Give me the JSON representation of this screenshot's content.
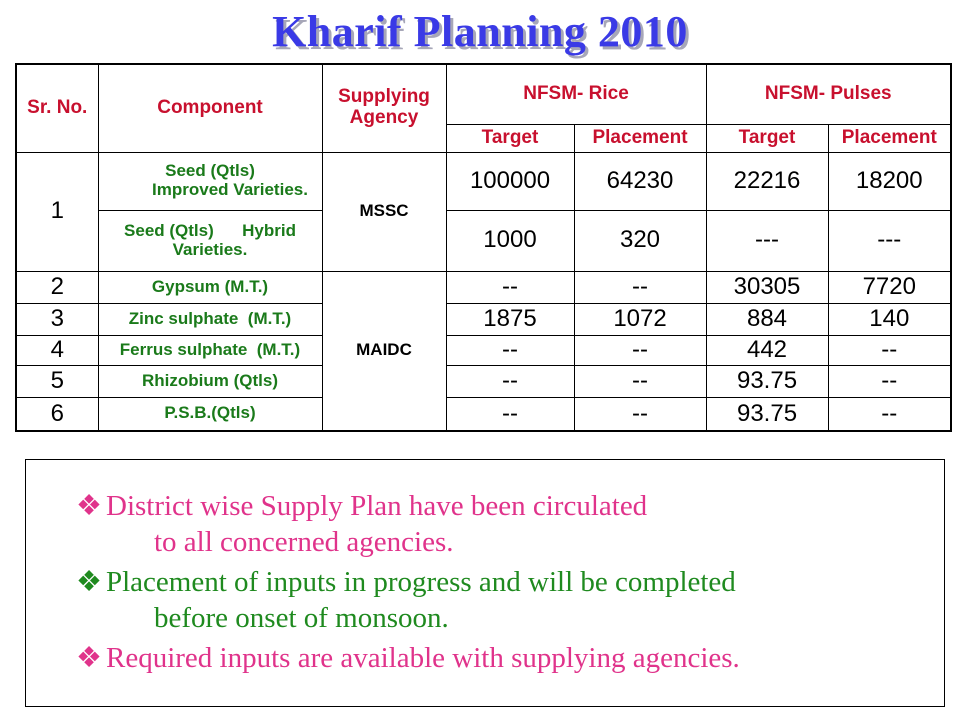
{
  "title": "Kharif Planning 2010",
  "table": {
    "headers": {
      "sr_no": "Sr. No.",
      "component": "Component",
      "supplying_agency_line1": "Supplying",
      "supplying_agency_line2": "Agency",
      "nfsm_rice": "NFSM- Rice",
      "nfsm_pulses": "NFSM- Pulses",
      "target": "Target",
      "placement": "Placement"
    },
    "rows": [
      {
        "sr": "1",
        "component_line1": "Seed (Qtls)",
        "component_line2": "Improved Varieties.",
        "agency": "MSSC",
        "rice_target": "100000",
        "rice_placement": "64230",
        "pulses_target": "22216",
        "pulses_placement": "18200"
      },
      {
        "sr": "",
        "component_line1": "Seed (Qtls)      Hybrid",
        "component_line2": "Varieties.",
        "agency": "",
        "rice_target": "1000",
        "rice_placement": "320",
        "pulses_target": "---",
        "pulses_placement": "---"
      },
      {
        "sr": "2",
        "component": "Gypsum (M.T.)",
        "agency": "MAIDC",
        "rice_target": "--",
        "rice_placement": "--",
        "pulses_target": "30305",
        "pulses_placement": "7720"
      },
      {
        "sr": "3",
        "component": "Zinc sulphate  (M.T.)",
        "rice_target": "1875",
        "rice_placement": "1072",
        "pulses_target": "884",
        "pulses_placement": "140"
      },
      {
        "sr": "4",
        "component": "Ferrus sulphate  (M.T.)",
        "rice_target": "--",
        "rice_placement": "--",
        "pulses_target": "442",
        "pulses_placement": "--"
      },
      {
        "sr": "5",
        "component": "Rhizobium (Qtls)",
        "rice_target": "--",
        "rice_placement": "--",
        "pulses_target": "93.75",
        "pulses_placement": "--"
      },
      {
        "sr": "6",
        "component": "P.S.B.(Qtls)",
        "rice_target": "--",
        "rice_placement": "--",
        "pulses_target": "93.75",
        "pulses_placement": "--"
      }
    ]
  },
  "notes": {
    "bullet_symbol": "❖",
    "items": [
      {
        "line1": "District wise Supply Plan have been circulated",
        "line2": "to all concerned agencies.",
        "color": "#e0338b"
      },
      {
        "line1": "Placement of inputs in progress and will be completed",
        "line2": "before onset of monsoon.",
        "color": "#1f8a1f"
      },
      {
        "line1": "Required inputs are available with supplying agencies.",
        "color": "#e0338b"
      }
    ]
  }
}
